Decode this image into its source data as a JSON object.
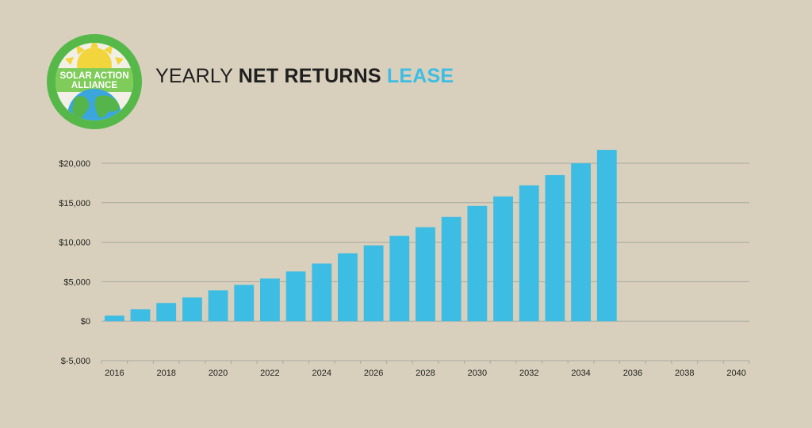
{
  "logo": {
    "line1": "SOLAR ACTION",
    "line2": "ALLIANCE"
  },
  "title": {
    "part1": "YEARLY",
    "part2": "NET RETURNS",
    "part3": "LEASE"
  },
  "colors": {
    "background": "#d8d0bc",
    "bar": "#3dbde3",
    "accent": "#3dbde3",
    "grid": "#a9a9a2",
    "logo_ring": "#55b848",
    "logo_inner": "#7fcc5a",
    "logo_sun": "#f2d53c",
    "logo_globe": "#3aa6dd"
  },
  "chart_data": {
    "type": "bar",
    "title": "YEARLY NET RETURNS LEASE",
    "xlabel": "",
    "ylabel": "",
    "categories": [
      "2016",
      "2017",
      "2018",
      "2019",
      "2020",
      "2021",
      "2022",
      "2023",
      "2024",
      "2025",
      "2026",
      "2027",
      "2028",
      "2029",
      "2030",
      "2031",
      "2032",
      "2033",
      "2034",
      "2035",
      "2036",
      "2037",
      "2038",
      "2039",
      "2040"
    ],
    "values": [
      700,
      1500,
      2300,
      3000,
      3900,
      4600,
      5400,
      6300,
      7300,
      8600,
      9600,
      10800,
      11900,
      13200,
      14600,
      15800,
      17200,
      18500,
      20000,
      21700,
      null,
      null,
      null,
      null,
      null
    ],
    "x_tick_labels": [
      "2016",
      "2018",
      "2020",
      "2022",
      "2024",
      "2026",
      "2028",
      "2030",
      "2032",
      "2034",
      "2036",
      "2038",
      "2040"
    ],
    "y_ticks": [
      -5000,
      0,
      5000,
      10000,
      15000,
      20000
    ],
    "y_tick_labels": [
      "$-5,000",
      "$0",
      "$5,000",
      "$10,000",
      "$15,000",
      "$20,000"
    ],
    "ylim": [
      -5000,
      20000
    ],
    "grid": true,
    "legend": "none"
  }
}
